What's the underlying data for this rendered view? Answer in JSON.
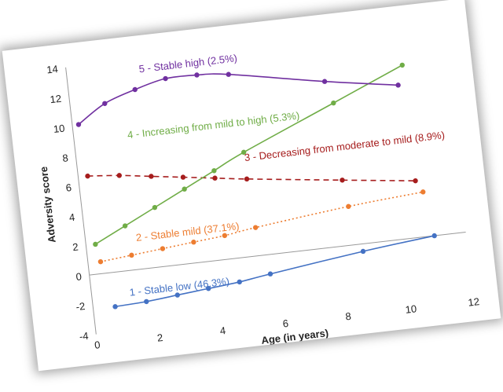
{
  "chart_data": {
    "type": "line",
    "title": "",
    "xlabel": "Age (in years)",
    "ylabel": "Adversity score",
    "xlim": [
      0,
      12
    ],
    "ylim": [
      -4,
      14
    ],
    "xticks": [
      "0",
      "2",
      "4",
      "6",
      "8",
      "10",
      "12"
    ],
    "yticks": [
      "-4",
      "-2",
      "0",
      "2",
      "4",
      "6",
      "8",
      "10",
      "12",
      "14"
    ],
    "grid": false,
    "legend": "inline labels",
    "series": [
      {
        "name": "1 - Stable low (46.3%)",
        "color": "#4472c4",
        "style": "solid",
        "x": [
          0.7,
          1.7,
          2.7,
          3.7,
          4.7,
          5.7,
          8.7,
          11
        ],
        "y": [
          -2.3,
          -2.2,
          -2.0,
          -1.8,
          -1.6,
          -1.3,
          -0.5,
          0
        ]
      },
      {
        "name": "2 - Stable mild (37.1%)",
        "color": "#ed7d31",
        "style": "dotted",
        "x": [
          0.4,
          1.4,
          2.4,
          3.4,
          4.4,
          5.4,
          8.4,
          10.8
        ],
        "y": [
          0.8,
          1.0,
          1.2,
          1.4,
          1.6,
          1.9,
          2.6,
          3.0
        ]
      },
      {
        "name": "3 - Decreasing from moderate to mild (8.9%)",
        "color": "#a61d1d",
        "style": "dashed",
        "x": [
          0.3,
          1.3,
          2.3,
          3.3,
          4.3,
          5.3,
          8.3,
          10.6
        ],
        "y": [
          6.6,
          6.4,
          6.1,
          5.8,
          5.5,
          5.2,
          4.4,
          3.8
        ]
      },
      {
        "name": "4 - Increasing from mild to high (5.3%)",
        "color": "#70ad47",
        "style": "solid",
        "x": [
          0.3,
          1.3,
          2.3,
          3.3,
          4.3,
          5.3,
          8.3,
          10.6
        ],
        "y": [
          2.0,
          3.0,
          4.0,
          5.0,
          6.0,
          7.0,
          9.6,
          11.6
        ]
      },
      {
        "name": "5 - Stable high (2.5%)",
        "color": "#7030a0",
        "style": "solid",
        "x": [
          0.2,
          1.1,
          2.1,
          3.1,
          4.1,
          5.1,
          8.1,
          10.4
        ],
        "y": [
          10.1,
          11.3,
          12.0,
          12.5,
          12.5,
          12.3,
          11.1,
          10.3
        ]
      }
    ]
  }
}
